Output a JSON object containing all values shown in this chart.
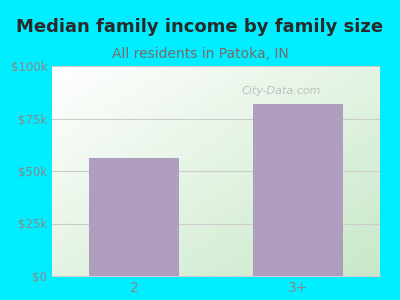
{
  "categories": [
    "2",
    "3+"
  ],
  "values": [
    56000,
    82000
  ],
  "bar_color": "#b09ec0",
  "title": "Median family income by family size",
  "subtitle": "All residents in Patoka, IN",
  "subtitle_color": "#7a6a6a",
  "title_color": "#2a2a2a",
  "background_color": "#00eeff",
  "plot_bg_topleft": "#f0f8f0",
  "plot_bg_bottomright": "#d8eed8",
  "ylim": [
    0,
    100000
  ],
  "yticks": [
    0,
    25000,
    50000,
    75000,
    100000
  ],
  "ytick_labels": [
    "$0",
    "$25k",
    "$50k",
    "$75k",
    "$100k"
  ],
  "tick_color": "#888888",
  "watermark": "City-Data.com",
  "title_fontsize": 13,
  "subtitle_fontsize": 10,
  "grid_color": "#cccccc"
}
